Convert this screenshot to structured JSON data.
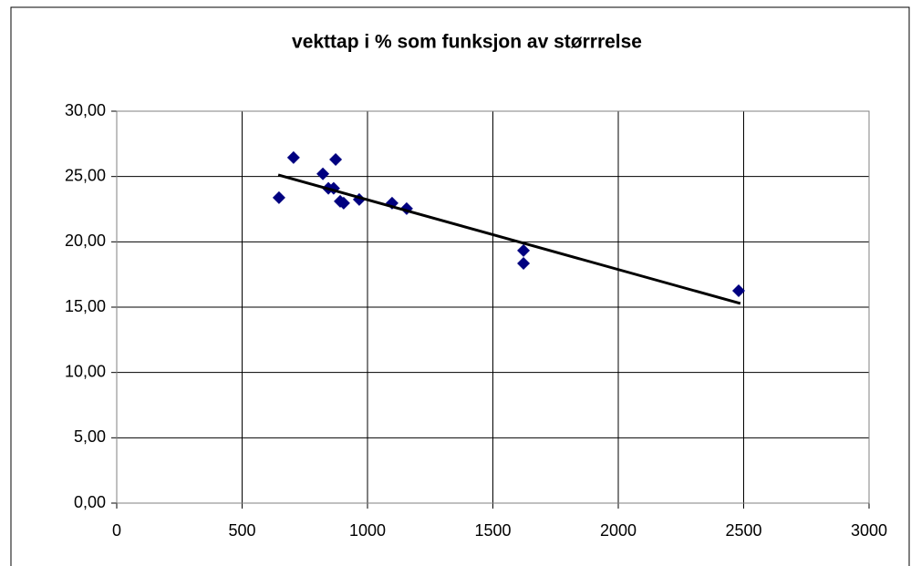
{
  "chart_data": {
    "type": "scatter",
    "title": "vekttap i % som funksjon av størrrelse",
    "series": [
      {
        "color": "#000080",
        "x": [
          647,
          705,
          873,
          822,
          844,
          865,
          891,
          905,
          967,
          1098,
          1156,
          1622,
          1622,
          2480
        ],
        "values": [
          23.38,
          26.45,
          26.3,
          25.2,
          24.1,
          24.1,
          23.1,
          22.96,
          23.24,
          22.96,
          22.54,
          19.33,
          18.35,
          16.26
        ]
      }
    ],
    "trendline": {
      "color": "#000000",
      "x": [
        644,
        2487
      ],
      "values": [
        25.12,
        15.28
      ]
    },
    "xlim": [
      0,
      3000
    ],
    "xticks": [
      0,
      500,
      1000,
      1500,
      2000,
      2500,
      3000
    ],
    "ylim": [
      0,
      30
    ],
    "yticks": [
      {
        "value": 0,
        "label": "0,00"
      },
      {
        "value": 5,
        "label": "5,00"
      },
      {
        "value": 10,
        "label": "10,00"
      },
      {
        "value": 15,
        "label": "15,00"
      },
      {
        "value": 20,
        "label": "20,00"
      },
      {
        "value": 25,
        "label": "25,00"
      },
      {
        "value": 30,
        "label": "30,00"
      }
    ],
    "grid": true
  }
}
